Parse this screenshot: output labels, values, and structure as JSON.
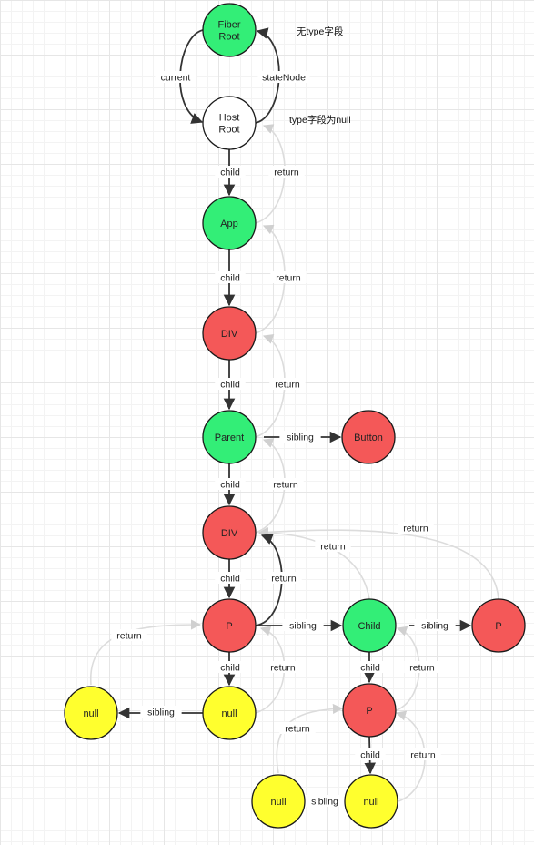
{
  "colors": {
    "green": "#33ee77",
    "red": "#f45858",
    "yellow": "#ffff2e",
    "white": "#ffffff",
    "dark_edge": "#333333",
    "light_edge": "#dcdcdc"
  },
  "nodes": {
    "fiber_root": {
      "lines": [
        "Fiber",
        "Root"
      ],
      "color": "green"
    },
    "host_root": {
      "lines": [
        "Host",
        "Root"
      ],
      "color": "white"
    },
    "app": {
      "lines": [
        "App"
      ],
      "color": "green"
    },
    "div1": {
      "lines": [
        "DIV"
      ],
      "color": "red"
    },
    "parent": {
      "lines": [
        "Parent"
      ],
      "color": "green"
    },
    "button": {
      "lines": [
        "Button"
      ],
      "color": "red"
    },
    "div2": {
      "lines": [
        "DIV"
      ],
      "color": "red"
    },
    "p1": {
      "lines": [
        "P"
      ],
      "color": "red"
    },
    "child": {
      "lines": [
        "Child"
      ],
      "color": "green"
    },
    "p_right": {
      "lines": [
        "P"
      ],
      "color": "red"
    },
    "null_left": {
      "lines": [
        "null"
      ],
      "color": "yellow"
    },
    "null_mid": {
      "lines": [
        "null"
      ],
      "color": "yellow"
    },
    "p2": {
      "lines": [
        "P"
      ],
      "color": "red"
    },
    "null_bl": {
      "lines": [
        "null"
      ],
      "color": "yellow"
    },
    "null_br": {
      "lines": [
        "null"
      ],
      "color": "yellow"
    }
  },
  "labels": {
    "current": "current",
    "stateNode": "stateNode",
    "child": "child",
    "return": "return",
    "sibling": "sibling"
  },
  "notes": {
    "fiber_root": "无type字段",
    "host_root": "type字段为null"
  }
}
